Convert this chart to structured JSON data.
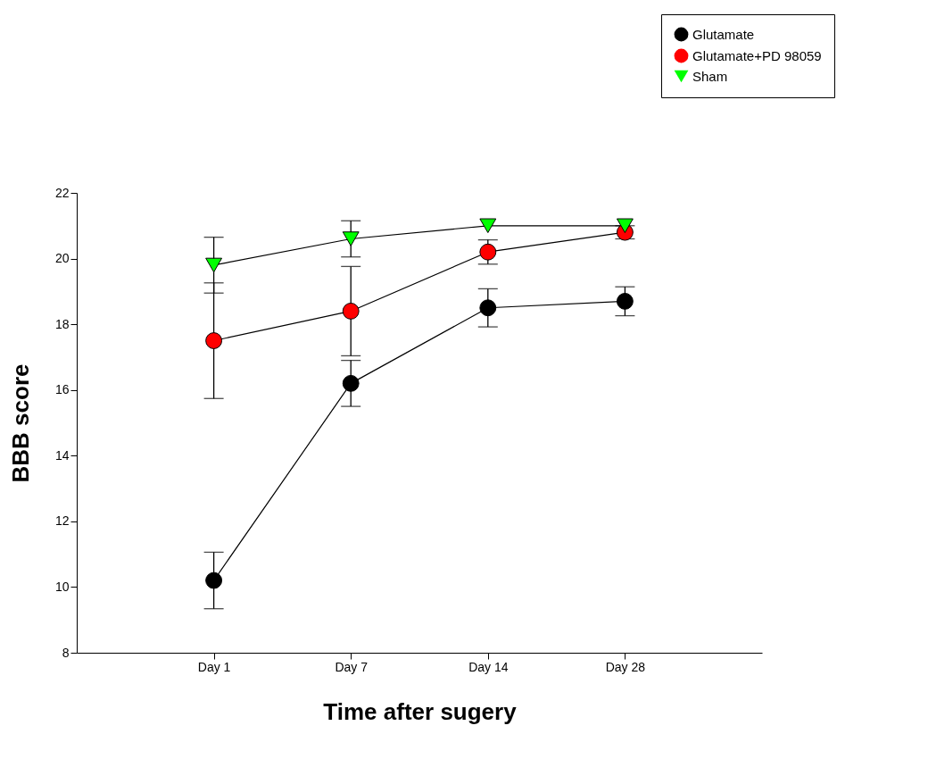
{
  "chart_data": {
    "type": "line",
    "xlabel": "Time after sugery",
    "ylabel": "BBB score",
    "categories": [
      "Day 1",
      "Day 7",
      "Day 14",
      "Day 28"
    ],
    "series": [
      {
        "name": "Glutamate",
        "color": "#000000",
        "marker": "circle",
        "values": [
          10.2,
          16.2,
          18.5,
          18.7
        ],
        "errors": [
          0.86,
          0.7,
          0.58,
          0.44
        ]
      },
      {
        "name": "Glutamate+PD 98059",
        "color": "#ff0000",
        "marker": "circle",
        "values": [
          17.5,
          18.4,
          20.2,
          20.8
        ],
        "errors": [
          1.76,
          1.36,
          0.37,
          0.2
        ]
      },
      {
        "name": "Sham",
        "color": "#00ff00",
        "marker": "triangle",
        "values": [
          19.8,
          20.6,
          21.0,
          21.0
        ],
        "errors": [
          0.85,
          0.55,
          null,
          null
        ]
      }
    ],
    "ylim": [
      8,
      22
    ],
    "yticks": [
      8,
      10,
      12,
      14,
      16,
      18,
      20,
      22
    ],
    "grid": false,
    "legend": "top right",
    "line_style": "solid"
  }
}
